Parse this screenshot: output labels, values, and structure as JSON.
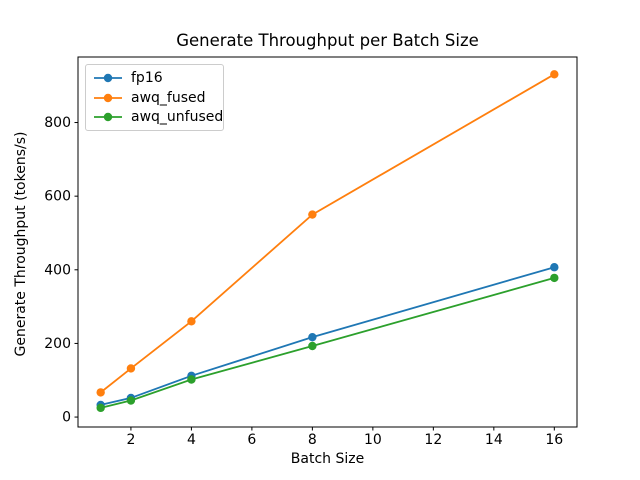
{
  "figure": {
    "background": "#ffffff",
    "text_color": "#000000",
    "axis_color": "#000000"
  },
  "chart_data": {
    "type": "line",
    "title": "Generate Throughput per Batch Size",
    "xlabel": "Batch Size",
    "ylabel": "Generate Throughput (tokens/s)",
    "x": [
      1,
      2,
      4,
      8,
      16
    ],
    "series": [
      {
        "name": "fp16",
        "color": "#1f77b4",
        "values": [
          33,
          52,
          112,
          217,
          407
        ]
      },
      {
        "name": "awq_fused",
        "color": "#ff7f0e",
        "values": [
          67,
          132,
          260,
          550,
          931
        ]
      },
      {
        "name": "awq_unfused",
        "color": "#2ca02c",
        "values": [
          25,
          45,
          102,
          193,
          378
        ]
      }
    ],
    "xticks": [
      2,
      4,
      6,
      8,
      10,
      12,
      14,
      16
    ],
    "yticks": [
      0,
      200,
      400,
      600,
      800
    ],
    "xlim": [
      0.25,
      16.75
    ],
    "ylim": [
      -27,
      978
    ],
    "grid": false,
    "marker": "circle",
    "legend": {
      "position": "upper left",
      "entries": [
        "fp16",
        "awq_fused",
        "awq_unfused"
      ]
    }
  }
}
